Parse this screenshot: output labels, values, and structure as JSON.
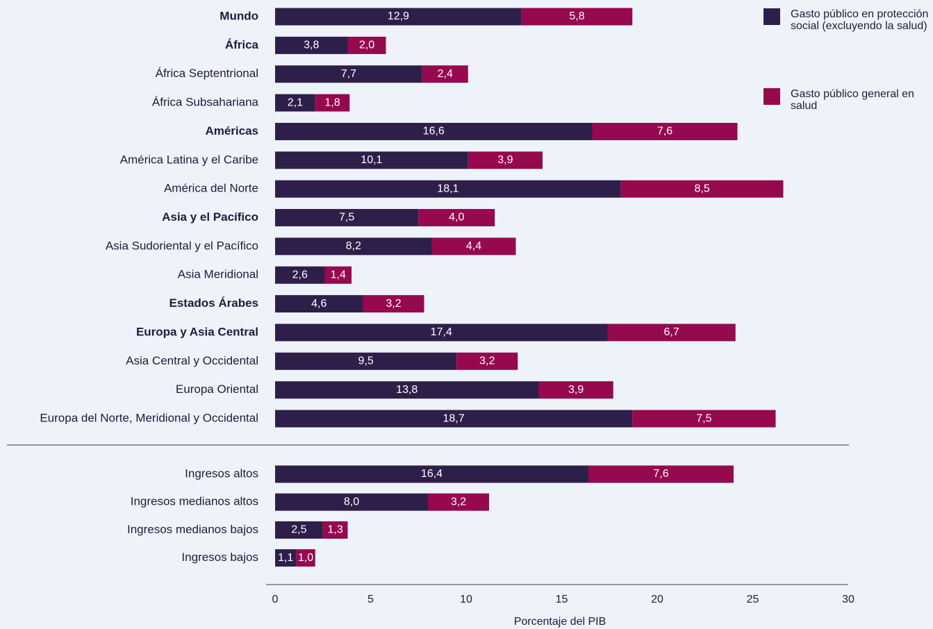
{
  "chart_data": {
    "type": "stacked_barh",
    "categories": [
      "Mundo",
      "África",
      "África Septentrional",
      "África Subsahariana",
      "Américas",
      "América Latina y el Caribe",
      "América del Norte",
      "Asia y el Pacífico",
      "Asia Sudoriental y el Pacífico",
      "Asia Meridional",
      "Estados Árabes",
      "Europa y Asia Central",
      "Asia Central y Occidental",
      "Europa Oriental",
      "Europa del Norte, Meridional y Occidental",
      "Ingresos altos",
      "Ingresos medianos altos",
      "Ingresos medianos bajos",
      "Ingresos bajos"
    ],
    "bold": [
      true,
      true,
      false,
      false,
      true,
      false,
      false,
      true,
      false,
      false,
      true,
      true,
      false,
      false,
      false,
      false,
      false,
      false,
      false
    ],
    "series": [
      {
        "name": "Gasto público en protección social (excluyendo la salud)",
        "color": "#2e1f4a",
        "values": [
          12.9,
          3.8,
          7.7,
          2.1,
          16.6,
          10.1,
          18.1,
          7.5,
          8.2,
          2.6,
          4.6,
          17.4,
          9.5,
          13.8,
          18.7,
          16.4,
          8.0,
          2.5,
          1.1
        ],
        "value_labels": [
          "12,9",
          "3,8",
          "7,7",
          "2,1",
          "16,6",
          "10,1",
          "18,1",
          "7,5",
          "8,2",
          "2,6",
          "4,6",
          "17,4",
          "9,5",
          "13,8",
          "18,7",
          "16,4",
          "8,0",
          "2,5",
          "1,1"
        ]
      },
      {
        "name": "Gasto público general en salud",
        "color": "#96094f",
        "values": [
          5.8,
          2.0,
          2.4,
          1.8,
          7.6,
          3.9,
          8.5,
          4.0,
          4.4,
          1.4,
          3.2,
          6.7,
          3.2,
          3.9,
          7.5,
          7.6,
          3.2,
          1.3,
          1.0
        ],
        "value_labels": [
          "5,8",
          "2,0",
          "2,4",
          "1,8",
          "7,6",
          "3,9",
          "8,5",
          "4,0",
          "4,4",
          "1,4",
          "3,2",
          "6,7",
          "3,2",
          "3,9",
          "7,5",
          "7,6",
          "3,2",
          "1,3",
          "1,0"
        ]
      }
    ],
    "xlabel": "Porcentaje del PIB",
    "xlim": [
      0,
      30
    ],
    "xticks": [
      0,
      5,
      10,
      15,
      20,
      25,
      30
    ]
  }
}
